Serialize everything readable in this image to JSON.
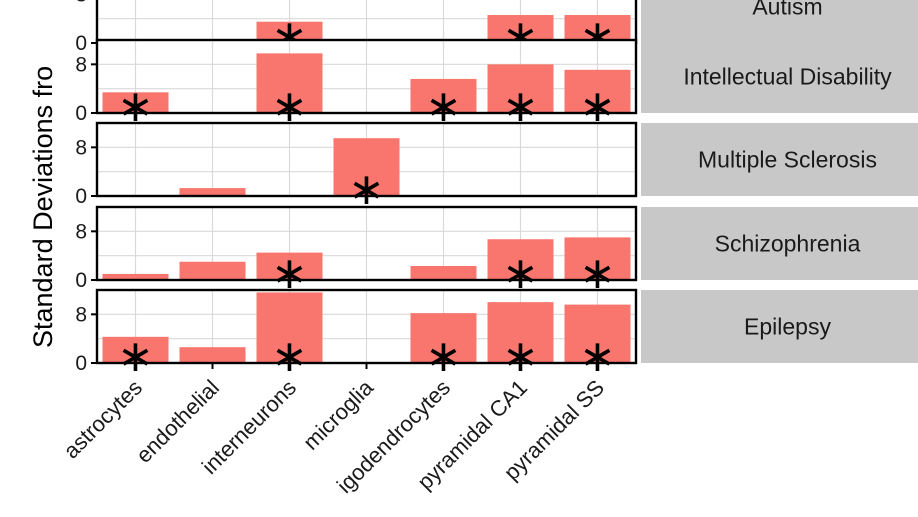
{
  "chart_data": {
    "type": "bar",
    "ylabel": "Standard Deviations fro",
    "categories": [
      "astrocytes",
      "endothelial",
      "interneurons",
      "microglia",
      "oligodendrocytes",
      "pyramidal CA1",
      "pyramidal SS"
    ],
    "category_labels": [
      "astrocytes",
      "endothelial",
      "interneurons",
      "microglia",
      "igodendrocytes",
      "pyramidal CA1",
      "pyramidal SS"
    ],
    "yticks": [
      0,
      8
    ],
    "ylim": [
      0,
      12
    ],
    "bar_color": "#f8766d",
    "strip_fill": "#c8c8c8",
    "facets": [
      {
        "name": "Autism",
        "strip_label": "Autism",
        "values": [
          0,
          0,
          3.5,
          0,
          0.6,
          4.6,
          4.6
        ],
        "significant": [
          false,
          false,
          true,
          false,
          false,
          true,
          true
        ]
      },
      {
        "name": "Intellectual Disability",
        "strip_label": "Intellectual Disability",
        "values": [
          3.4,
          0,
          9.8,
          0,
          5.6,
          8.0,
          7.1
        ],
        "significant": [
          true,
          false,
          true,
          false,
          true,
          true,
          true
        ]
      },
      {
        "name": "Multiple Sclerosis",
        "strip_label": "Multiple Sclerosis",
        "values": [
          0,
          1.3,
          0,
          9.5,
          0,
          0,
          0
        ],
        "significant": [
          false,
          false,
          false,
          true,
          false,
          false,
          false
        ]
      },
      {
        "name": "Schizophrenia",
        "strip_label": "Schizophrenia",
        "values": [
          1.0,
          3.0,
          4.5,
          0,
          2.3,
          6.7,
          7.0
        ],
        "significant": [
          false,
          false,
          true,
          false,
          false,
          true,
          true
        ]
      },
      {
        "name": "Epilepsy",
        "strip_label": "Epilepsy",
        "values": [
          4.3,
          2.6,
          11.6,
          0,
          8.2,
          10.0,
          9.6
        ],
        "significant": [
          true,
          false,
          true,
          false,
          true,
          true,
          true
        ]
      }
    ]
  }
}
